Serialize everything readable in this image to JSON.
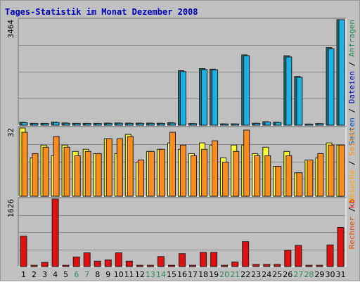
{
  "chart_data": {
    "type": "bar",
    "title": "Tages-Statistik im Monat Dezember 2008",
    "categories": [
      "1",
      "2",
      "3",
      "4",
      "5",
      "6",
      "7",
      "8",
      "9",
      "10",
      "11",
      "12",
      "13",
      "14",
      "15",
      "16",
      "17",
      "18",
      "19",
      "20",
      "21",
      "22",
      "23",
      "24",
      "25",
      "26",
      "27",
      "28",
      "29",
      "30",
      "31"
    ],
    "weekend_days": [
      "6",
      "7",
      "13",
      "14",
      "20",
      "21",
      "27",
      "28"
    ],
    "colors": {
      "background": "#c0c0c0",
      "plot": "#c0c0c0",
      "title": "#0000c0",
      "weekday_label": "#000000",
      "weekend_label": "#2e8b57",
      "anfragen": "#1f6f6f",
      "dateien": "#1ab0e8",
      "rechner": "#ffff33",
      "besuche": "#ff8c1a",
      "seiten": "#e04a00",
      "kb": "#e01010"
    },
    "panels": [
      {
        "id": "top",
        "ymax_label": "3464",
        "ymax": 3464,
        "grid": true,
        "right_label": [
          {
            "text": "Seiten",
            "color": "#0060c0"
          },
          {
            "text": " / ",
            "color": "#000000"
          },
          {
            "text": "Dateien",
            "color": "#0000c0"
          },
          {
            "text": " / ",
            "color": "#000000"
          },
          {
            "text": "Anfragen",
            "color": "#2e8b57"
          }
        ],
        "series": [
          {
            "name": "Anfragen",
            "color": "#1f6f6f",
            "values": [
              95,
              60,
              60,
              105,
              75,
              60,
              60,
              60,
              70,
              75,
              70,
              70,
              70,
              65,
              80,
              1790,
              55,
              1860,
              1840,
              45,
              45,
              2310,
              65,
              115,
              100,
              2280,
              1600,
              40,
              55,
              2550,
              3464
            ]
          },
          {
            "name": "Dateien",
            "color": "#1ab0e8",
            "values": [
              80,
              55,
              55,
              90,
              65,
              55,
              55,
              55,
              60,
              65,
              60,
              60,
              60,
              55,
              70,
              1760,
              50,
              1830,
              1820,
              40,
              40,
              2280,
              60,
              105,
              90,
              2240,
              1570,
              35,
              50,
              2510,
              3464
            ]
          }
        ]
      },
      {
        "id": "middle",
        "ymax_label": "32",
        "ymax": 32,
        "grid": true,
        "right_label": [
          {
            "text": "Rechner",
            "color": "#e04a00"
          },
          {
            "text": " / ",
            "color": "#000000"
          },
          {
            "text": "Besuche",
            "color": "#ffa500"
          },
          {
            "text": " / ",
            "color": "#000000"
          },
          {
            "text": "Seiten",
            "color": "#ff8c1a"
          }
        ],
        "series": [
          {
            "name": "Rechner",
            "color": "#ffff33",
            "values": [
              32,
              18,
              24,
              19,
              24,
              21,
              22,
              20,
              27,
              20,
              29,
              16,
              21,
              22,
              25,
              22,
              20,
              25,
              24,
              18,
              24,
              24,
              20,
              23,
              14,
              21,
              11,
              17,
              18,
              25,
              24
            ]
          },
          {
            "name": "Besuche",
            "color": "#ff8c1a",
            "values": [
              30,
              20,
              23,
              28,
              23,
              19,
              21,
              20,
              27,
              27,
              28,
              17,
              21,
              22,
              30,
              24,
              19,
              22,
              26,
              16,
              21,
              31,
              19,
              19,
              14,
              19,
              11,
              17,
              20,
              24,
              24
            ]
          }
        ]
      },
      {
        "id": "bottom",
        "ymax_label": "1626",
        "ymax": 1626,
        "grid": true,
        "right_label": [
          {
            "text": "kb",
            "color": "#e01010"
          }
        ],
        "series": [
          {
            "name": "kb",
            "color": "#e01010",
            "values": [
              730,
              30,
              100,
              1626,
              30,
              230,
              330,
              130,
              160,
              330,
              130,
              30,
              30,
              240,
              30,
              310,
              30,
              340,
              340,
              30,
              110,
              600,
              50,
              50,
              50,
              390,
              510,
              30,
              30,
              520,
              940
            ]
          }
        ]
      }
    ]
  }
}
